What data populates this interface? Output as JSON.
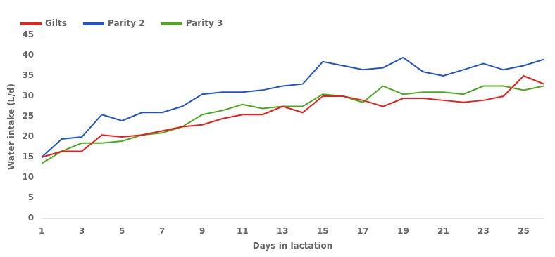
{
  "chart_data": {
    "type": "line",
    "x": [
      1,
      2,
      3,
      4,
      5,
      6,
      7,
      8,
      9,
      10,
      11,
      12,
      13,
      14,
      15,
      16,
      17,
      18,
      19,
      20,
      21,
      22,
      23,
      24,
      25,
      26
    ],
    "series": [
      {
        "name": "Gilts",
        "color": "#e8201c",
        "values": [
          15.0,
          16.5,
          16.5,
          20.5,
          20.0,
          20.5,
          21.5,
          22.5,
          23.0,
          24.5,
          25.5,
          25.5,
          27.5,
          26.0,
          30.0,
          30.0,
          29.0,
          27.5,
          29.5,
          29.5,
          29.0,
          28.5,
          29.0,
          30.0,
          35.0,
          33.0
        ]
      },
      {
        "name": "Parity 2",
        "color": "#1f54d4",
        "values": [
          15.0,
          19.5,
          20.0,
          25.5,
          24.0,
          26.0,
          26.0,
          27.5,
          30.5,
          31.0,
          31.0,
          31.5,
          32.5,
          33.0,
          38.5,
          37.5,
          36.5,
          37.0,
          39.5,
          36.0,
          35.0,
          36.5,
          38.0,
          36.5,
          37.5,
          39.0
        ]
      },
      {
        "name": "Parity 3",
        "color": "#4aaa1c",
        "values": [
          13.5,
          16.5,
          18.5,
          18.5,
          19.0,
          20.5,
          21.0,
          22.5,
          25.5,
          26.5,
          28.0,
          27.0,
          27.5,
          27.5,
          30.5,
          30.0,
          28.5,
          32.5,
          30.5,
          31.0,
          31.0,
          30.5,
          32.5,
          32.5,
          31.5,
          32.5
        ]
      }
    ],
    "x_label": "Days in lactation",
    "y_label": "Water intake (L/d)",
    "xlim": [
      1,
      26
    ],
    "xticks": [
      1,
      3,
      5,
      7,
      9,
      11,
      13,
      15,
      17,
      19,
      21,
      23,
      25
    ],
    "ylim": [
      0,
      45
    ],
    "yticks": [
      0,
      5,
      10,
      15,
      20,
      25,
      30,
      35,
      40,
      45
    ],
    "grid": false,
    "legend": "upper left"
  }
}
